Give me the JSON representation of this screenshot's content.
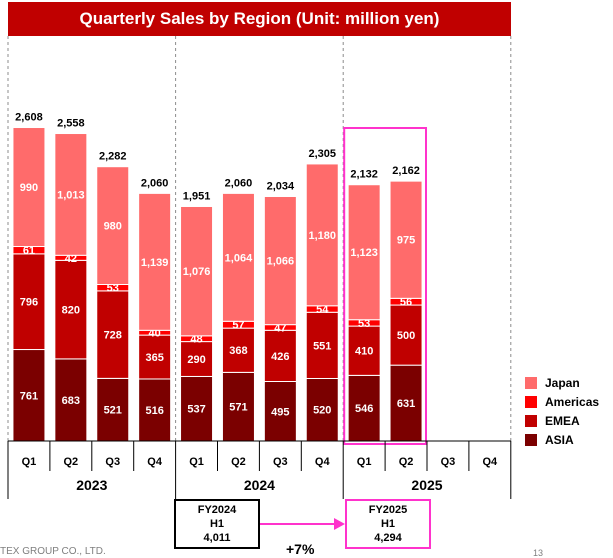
{
  "chart_data": {
    "type": "bar",
    "stacked": true,
    "title": "Quarterly Sales by Region (Unit: million yen)",
    "quarters": [
      "Q1",
      "Q2",
      "Q3",
      "Q4",
      "Q1",
      "Q2",
      "Q3",
      "Q4",
      "Q1",
      "Q2",
      "Q3",
      "Q4"
    ],
    "years": [
      "2023",
      "2024",
      "2025"
    ],
    "series": [
      {
        "name": "ASIA",
        "color": "#7b0000",
        "values": [
          761,
          683,
          521,
          516,
          537,
          571,
          495,
          520,
          546,
          631,
          null,
          null
        ]
      },
      {
        "name": "EMEA",
        "color": "#c00000",
        "values": [
          796,
          820,
          728,
          365,
          290,
          368,
          426,
          551,
          410,
          500,
          null,
          null
        ]
      },
      {
        "name": "Americas",
        "color": "#ff0000",
        "values": [
          61,
          42,
          53,
          40,
          48,
          57,
          47,
          54,
          53,
          56,
          null,
          null
        ]
      },
      {
        "name": "Japan",
        "color": "#ff6b6b",
        "values": [
          990,
          1013,
          980,
          1139,
          1076,
          1064,
          1066,
          1180,
          1123,
          975,
          null,
          null
        ]
      }
    ],
    "value_labels": [
      [
        "761",
        "683",
        "521",
        "516",
        "537",
        "571",
        "495",
        "520",
        "546",
        "631"
      ],
      [
        "796",
        "820",
        "728",
        "365",
        "290",
        "368",
        "426",
        "551",
        "410",
        "500"
      ],
      [
        "61",
        "42",
        "53",
        "40",
        "48",
        "57",
        "47",
        "54",
        "53",
        "56"
      ],
      [
        "990",
        "1,013",
        "980",
        "1,139",
        "1,076",
        "1,064",
        "1,066",
        "1,180",
        "1,123",
        "975"
      ]
    ],
    "totals": [
      2608,
      2558,
      2282,
      2060,
      1951,
      2060,
      2034,
      2305,
      2132,
      2162,
      null,
      null
    ],
    "total_labels": [
      "2,608",
      "2,558",
      "2,282",
      "2,060",
      "1,951",
      "2,060",
      "2,034",
      "2,305",
      "2,132",
      "2,162"
    ],
    "legend": [
      "Japan",
      "Americas",
      "EMEA",
      "ASIA"
    ],
    "legend_position": "right",
    "highlight": {
      "quarters": [
        "2025 Q1",
        "2025 Q2"
      ],
      "color": "#ff33cc"
    },
    "ylim": [
      0,
      2900
    ]
  },
  "summary": {
    "prev": {
      "line1": "FY2024",
      "line2": "H1",
      "value": "4,011"
    },
    "curr": {
      "line1": "FY2025",
      "line2": "H1",
      "value": "4,294"
    },
    "growth": "+7%"
  },
  "footer": {
    "company": "TEX GROUP CO., LTD.",
    "page": "13"
  }
}
